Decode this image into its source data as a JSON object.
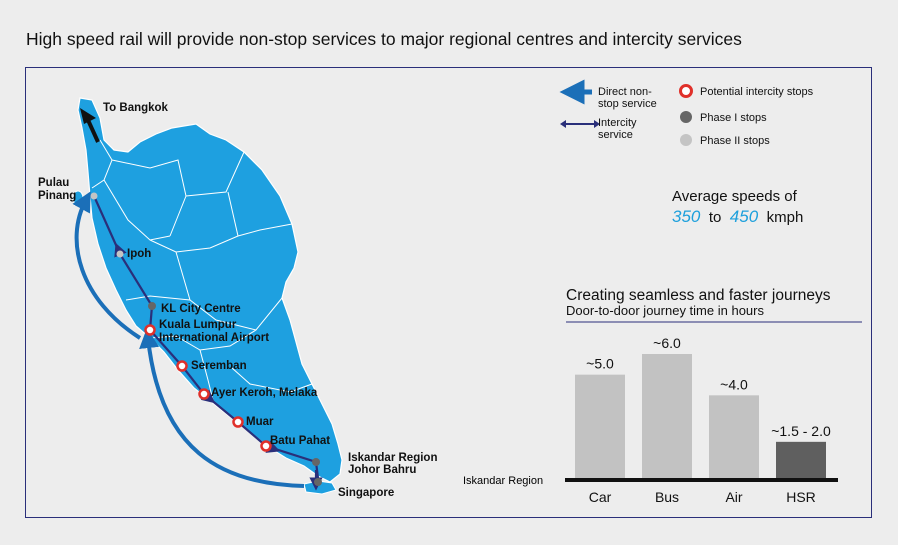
{
  "title": "High speed rail will provide non-stop services to major regional centres and intercity services",
  "map": {
    "labels": {
      "bangkok": "To Bangkok",
      "pulau_1": "Pulau",
      "pulau_2": "Pinang",
      "ipoh": "Ipoh",
      "kl": "KL City Centre",
      "klia_1": "Kuala Lumpur",
      "klia_2": "International Airport",
      "seremban": "Seremban",
      "melaka": "Ayer Keroh, Melaka",
      "muar": "Muar",
      "batu": "Batu Pahat",
      "iskandar_1": "Iskandar Region",
      "iskandar_2": "Johor Bahru",
      "singapore": "Singapore"
    }
  },
  "legend": {
    "direct_1": "Direct non-",
    "direct_2": "stop service",
    "intercity_1": "Intercity",
    "intercity_2": "service",
    "potential": "Potential intercity stops",
    "phase1": "Phase I stops",
    "phase2": "Phase II stops"
  },
  "colors": {
    "land": "#1ea0e0",
    "route": "#2a2f7a",
    "direct_arrow": "#1b6fb8",
    "potential_stop": "#e0302a",
    "phase1": "#666666",
    "phase2": "#c4c4c4",
    "bar": "#c2c2c2",
    "bar_hsr": "#5f5f5f"
  },
  "speed": {
    "line1": "Average speeds of",
    "min": "350",
    "to": "to",
    "max": "450",
    "unit": "kmph"
  },
  "chart_data": {
    "type": "bar",
    "title": "Creating seamless and faster journeys",
    "subtitle": "Door-to-door journey time in hours",
    "xlabel": "Iskandar Region",
    "categories": [
      "Car",
      "Bus",
      "Air",
      "HSR"
    ],
    "values": [
      5.0,
      6.0,
      4.0,
      1.75
    ],
    "value_labels": [
      "~5.0",
      "~6.0",
      "~4.0",
      "~1.5 - 2.0"
    ],
    "ylim": [
      0,
      6.5
    ],
    "grid": false
  }
}
